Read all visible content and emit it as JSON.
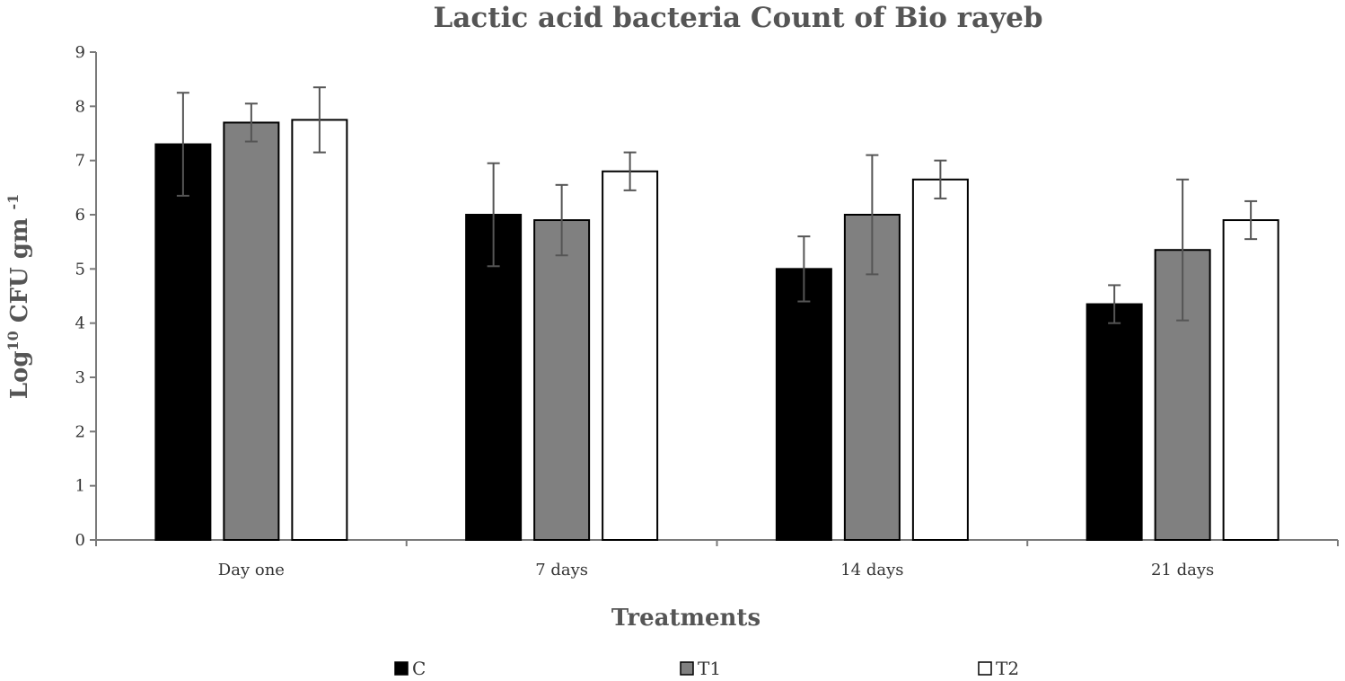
{
  "chart_data": {
    "type": "bar",
    "title": "Lactic acid bacteria Count of Bio rayeb",
    "xlabel": "Treatments",
    "ylabel": {
      "base": "Log",
      "superscript": "10",
      "unit": " CFU gm ",
      "unit_superscript": "-1"
    },
    "ylim": [
      0,
      9
    ],
    "yticks": [
      "0",
      "1",
      "2",
      "3",
      "4",
      "5",
      "6",
      "7",
      "8",
      "9"
    ],
    "categories": [
      "Day one",
      "7 days",
      "14 days",
      "21 days"
    ],
    "series": [
      {
        "name": "C",
        "color": "#000000",
        "values": [
          7.3,
          6.0,
          5.0,
          4.35
        ],
        "error": [
          0.95,
          0.95,
          0.6,
          0.35
        ]
      },
      {
        "name": "T1",
        "color": "#808080",
        "values": [
          7.7,
          5.9,
          6.0,
          5.35
        ],
        "error": [
          0.35,
          0.65,
          1.1,
          1.3
        ]
      },
      {
        "name": "T2",
        "color": "#ffffff",
        "values": [
          7.75,
          6.8,
          6.65,
          5.9
        ],
        "error": [
          0.6,
          0.35,
          0.35,
          0.35
        ]
      }
    ],
    "grid": false,
    "legend_position": "bottom"
  }
}
